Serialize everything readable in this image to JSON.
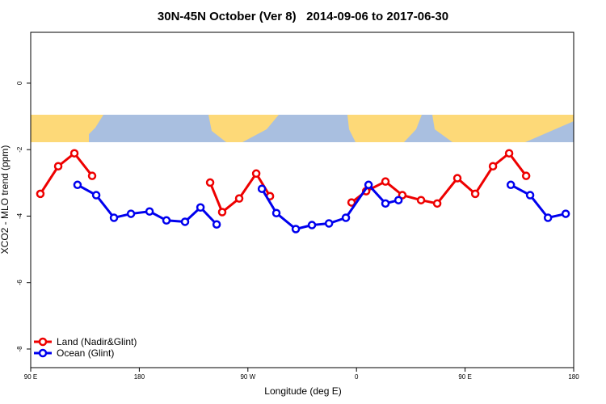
{
  "chart_data": {
    "type": "line",
    "title": "30N-45N October (Ver 8)   2014-09-06 to 2017-06-30",
    "xlabel": "Longitude (deg E)",
    "ylabel": "XCO2 - MLO trend (ppm)",
    "xlim": [
      90,
      540
    ],
    "xticks": [
      {
        "value": 90,
        "label": "90 E"
      },
      180,
      {
        "value": 270,
        "label": "90 W"
      },
      {
        "value": 360,
        "label": "0"
      },
      {
        "value": 450,
        "label": "90 E"
      },
      {
        "value": 540,
        "label": "180"
      }
    ],
    "ylim": [
      -8.56,
      1.53
    ],
    "yticks": [
      0,
      -2,
      -4,
      -6,
      -8
    ],
    "legend": "bottom-left",
    "series": [
      {
        "name": "Land (Nadir&Glint)",
        "color": "#ee0000",
        "x": [
          98.0,
          112.8,
          126.2,
          140.9,
          null,
          238.7,
          248.7,
          262.8,
          276.9,
          288.3,
          null,
          355.9,
          368.0,
          384.0,
          398.0,
          413.5,
          426.9,
          443.6,
          458.4,
          473.1,
          486.5,
          500.6
        ],
        "values": [
          -3.33,
          -2.5,
          -2.11,
          -2.79,
          null,
          -2.99,
          -3.88,
          -3.47,
          -2.72,
          -3.4,
          null,
          -3.59,
          -3.25,
          -2.96,
          -3.37,
          -3.52,
          -3.62,
          -2.86,
          -3.33,
          -2.5,
          -2.11,
          -2.79
        ]
      },
      {
        "name": "Ocean (Glint)",
        "color": "#0000ee",
        "x": [
          128.8,
          144.3,
          159.0,
          173.1,
          188.5,
          202.5,
          217.9,
          230.7,
          244.1,
          null,
          281.6,
          293.6,
          309.7,
          323.1,
          337.2,
          351.2,
          370.0,
          384.0,
          394.8,
          null,
          487.9,
          503.9,
          518.7,
          533.4
        ],
        "values": [
          -3.06,
          -3.37,
          -4.05,
          -3.93,
          -3.86,
          -4.13,
          -4.17,
          -3.74,
          -4.25,
          null,
          -3.18,
          -3.91,
          -4.39,
          -4.27,
          -4.22,
          -4.05,
          -3.06,
          -3.62,
          -3.52,
          null,
          -3.06,
          -3.37,
          -4.05,
          -3.93
        ]
      }
    ]
  }
}
